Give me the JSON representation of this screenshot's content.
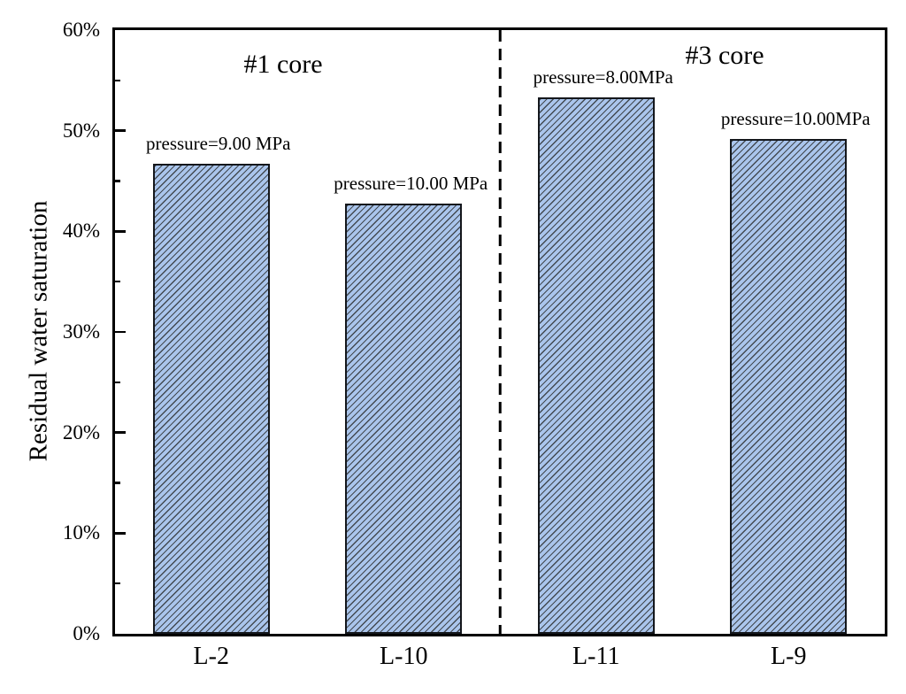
{
  "chart_data": {
    "type": "bar",
    "title": "",
    "xlabel": "",
    "ylabel": "Residual water saturation",
    "ylim": [
      0,
      60
    ],
    "y_unit": "%",
    "ytick_labels": [
      "0%",
      "10%",
      "20%",
      "30%",
      "40%",
      "50%",
      "60%"
    ],
    "ytick_values": [
      0,
      10,
      20,
      30,
      40,
      50,
      60
    ],
    "minor_tick_values": [
      5,
      15,
      25,
      35,
      45,
      55
    ],
    "grid": false,
    "legend": "none",
    "categories": [
      "L-2",
      "L-10",
      "L-11",
      "L-9"
    ],
    "values": [
      46.7,
      42.8,
      53.3,
      49.2
    ],
    "bar_annotations": [
      "pressure=9.00 MPa",
      "pressure=10.00 MPa",
      "pressure=8.00MPa",
      "pressure=10.00MPa"
    ],
    "groups": [
      {
        "label": "#1 core",
        "members": [
          "L-2",
          "L-10"
        ]
      },
      {
        "label": "#3 core",
        "members": [
          "L-11",
          "L-9"
        ]
      }
    ],
    "divider_style": "vertical dashed line between L-10 and L-11",
    "hatch": "forward-diagonal",
    "colors": {
      "bar_fill": "#aac5ec",
      "bar_hatch": "#3d4349",
      "bar_border": "#14171c",
      "axis": "#000000",
      "text": "#000000",
      "background": "#ffffff"
    }
  }
}
